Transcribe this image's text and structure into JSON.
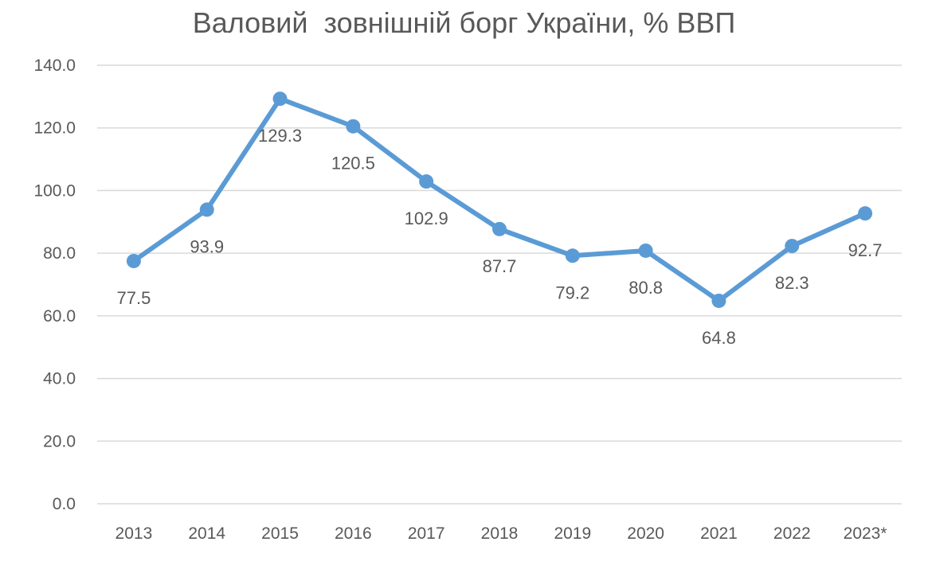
{
  "chart_data": {
    "type": "line",
    "title": "Валовий  зовнішній борг України, % ВВП",
    "categories": [
      "2013",
      "2014",
      "2015",
      "2016",
      "2017",
      "2018",
      "2019",
      "2020",
      "2021",
      "2022",
      "2023*"
    ],
    "series": [
      {
        "values": [
          77.5,
          93.9,
          129.3,
          120.5,
          102.9,
          87.7,
          79.2,
          80.8,
          64.8,
          82.3,
          92.7
        ],
        "labels": [
          "77.5",
          "93.9",
          "129.3",
          "120.5",
          "102.9",
          "87.7",
          "79.2",
          "80.8",
          "64.8",
          "82.3",
          "92.7"
        ]
      }
    ],
    "yticks": [
      "0.0",
      "20.0",
      "40.0",
      "60.0",
      "80.0",
      "100.0",
      "120.0",
      "140.0"
    ],
    "ylim": [
      0,
      140
    ],
    "grid": true,
    "legend": "none",
    "colors": {
      "line": "#5B9BD5",
      "grid": "#D9D9D9",
      "text": "#595959"
    }
  }
}
